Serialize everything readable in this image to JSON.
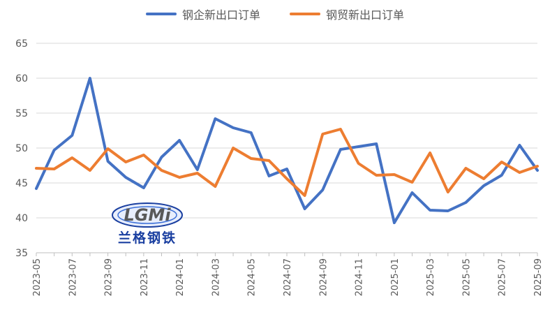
{
  "chart_data": {
    "type": "line",
    "x": [
      "2023-05",
      "2023-06",
      "2023-07",
      "2023-08",
      "2023-09",
      "2023-10",
      "2023-11",
      "2023-12",
      "2024-01",
      "2024-02",
      "2024-03",
      "2024-04",
      "2024-05",
      "2024-06",
      "2024-07",
      "2024-08",
      "2024-09",
      "2024-10",
      "2024-11",
      "2024-12",
      "2025-01",
      "2025-02",
      "2025-03",
      "2025-04",
      "2025-05",
      "2025-06",
      "2025-07",
      "2025-08",
      "2025-09"
    ],
    "tick_labels": [
      "2023-05",
      "2023-07",
      "2023-09",
      "2023-11",
      "2024-01",
      "2024-03",
      "2024-05",
      "2024-07",
      "2024-09",
      "2024-11",
      "2025-01",
      "2025-03",
      "2025-05",
      "2025-07",
      "2025-09"
    ],
    "y_ticks": [
      35,
      40,
      45,
      50,
      55,
      60,
      65
    ],
    "ylim": [
      35,
      65
    ],
    "grid": "horizontal",
    "legend_position": "top-center",
    "series": [
      {
        "name": "钢企新出口订单",
        "color": "#4472C4",
        "values": [
          44.2,
          49.7,
          51.8,
          60.0,
          48.1,
          45.8,
          44.3,
          48.7,
          51.1,
          46.9,
          54.2,
          52.9,
          52.2,
          46.0,
          47.0,
          41.3,
          44.0,
          49.8,
          50.2,
          50.6,
          39.3,
          43.6,
          41.1,
          41.0,
          42.2,
          44.6,
          46.1,
          50.4,
          46.8
        ]
      },
      {
        "name": "钢贸新出口订单",
        "color": "#ED7D31",
        "values": [
          47.1,
          47.0,
          48.6,
          46.8,
          49.9,
          48.0,
          49.0,
          46.8,
          45.8,
          46.4,
          44.5,
          50.0,
          48.5,
          48.2,
          45.6,
          43.2,
          52.0,
          52.7,
          47.8,
          46.1,
          46.2,
          45.1,
          49.3,
          43.7,
          47.1,
          45.6,
          48.0,
          46.5,
          47.4
        ]
      }
    ]
  },
  "watermark": {
    "logo_text": "LGMi",
    "caption": "兰格钢铁",
    "color": "#1a3fa0"
  }
}
